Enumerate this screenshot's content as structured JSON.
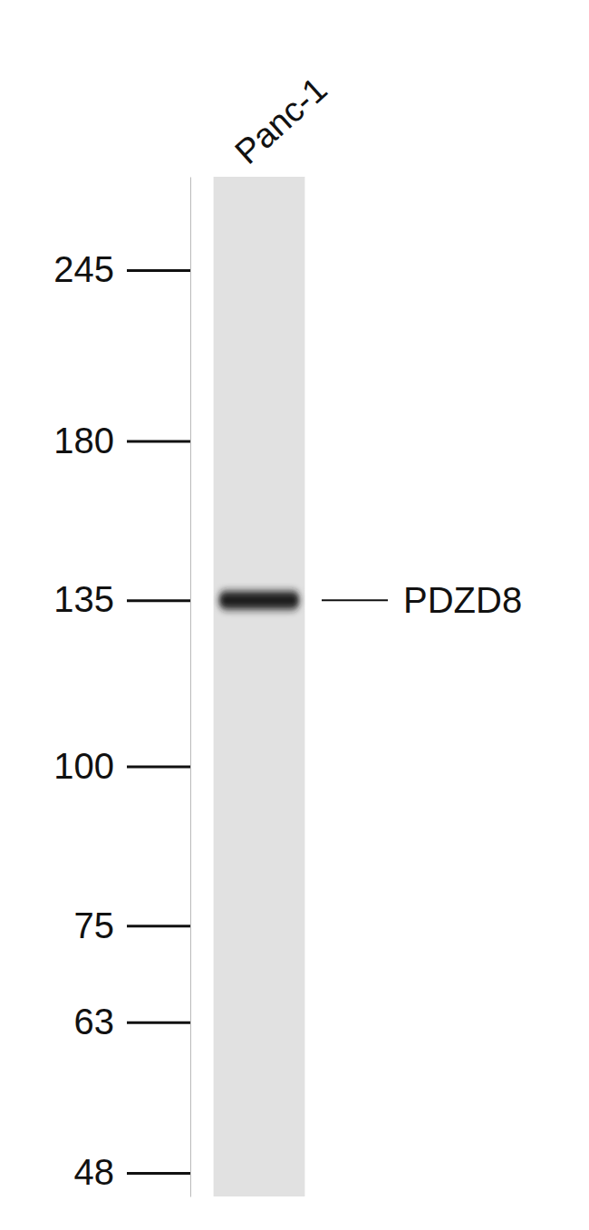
{
  "chart_data": {
    "type": "blot",
    "categories": [
      "Panc-1"
    ],
    "series": [
      {
        "name": "PDZD8",
        "values": [
          135
        ],
        "color": "#1a1a1a"
      }
    ],
    "log": "y",
    "ylim": [
      46,
      290
    ],
    "yticks": [
      245,
      180,
      135,
      100,
      75,
      63,
      48
    ]
  }
}
